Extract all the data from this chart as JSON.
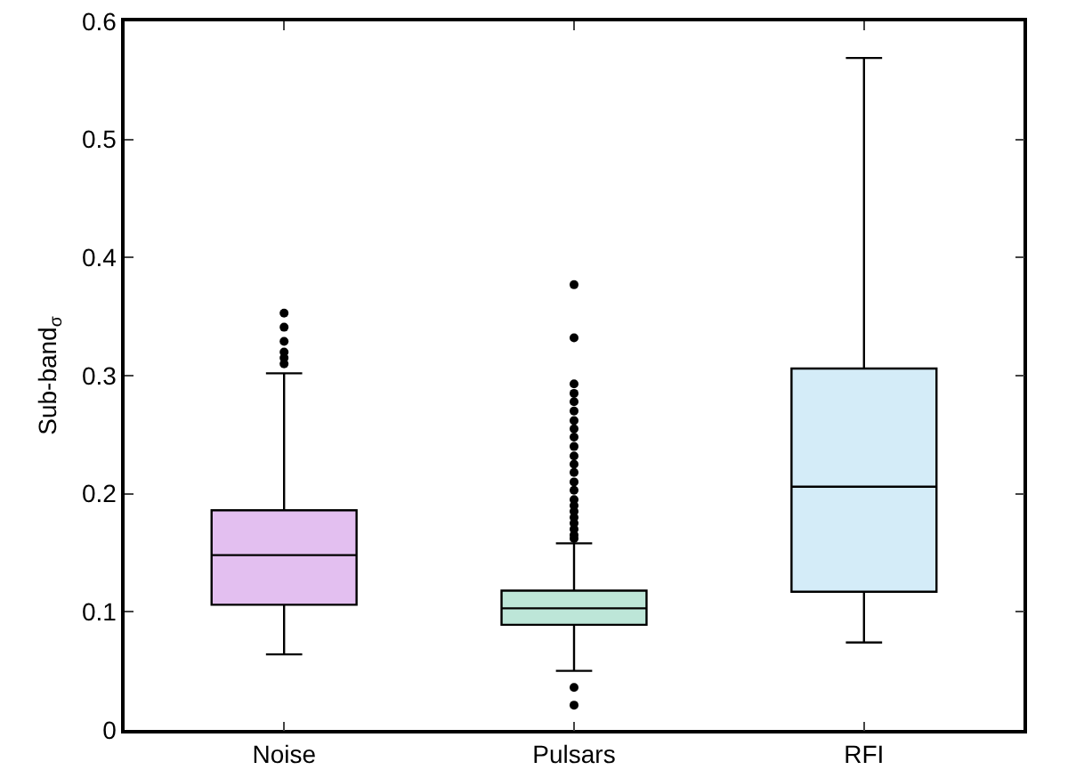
{
  "chart_data": {
    "type": "box",
    "ylabel": "Sub-band$_{σ}$",
    "categories": [
      "Noise",
      "Pulsars",
      "RFI"
    ],
    "colors": [
      "#e3bff0",
      "#bde6d8",
      "#d4ecf8"
    ],
    "boxes": [
      {
        "low": 0.064,
        "q1": 0.106,
        "median": 0.148,
        "q3": 0.186,
        "high": 0.302,
        "outliers": [
          0.353,
          0.341,
          0.329,
          0.32,
          0.315,
          0.31
        ]
      },
      {
        "low": 0.05,
        "q1": 0.089,
        "median": 0.103,
        "q3": 0.118,
        "high": 0.158,
        "outliers": [
          0.377,
          0.332,
          0.293,
          0.285,
          0.278,
          0.27,
          0.262,
          0.255,
          0.248,
          0.24,
          0.232,
          0.225,
          0.218,
          0.21,
          0.203,
          0.195,
          0.19,
          0.185,
          0.18,
          0.175,
          0.17,
          0.165,
          0.162,
          0.036,
          0.021
        ]
      },
      {
        "low": 0.074,
        "q1": 0.117,
        "median": 0.206,
        "q3": 0.306,
        "high": 0.569
      }
    ],
    "ylim": [
      0,
      0.6
    ],
    "yticks": [
      0,
      0.1,
      0.2,
      0.3,
      0.4,
      0.5,
      0.6
    ]
  }
}
